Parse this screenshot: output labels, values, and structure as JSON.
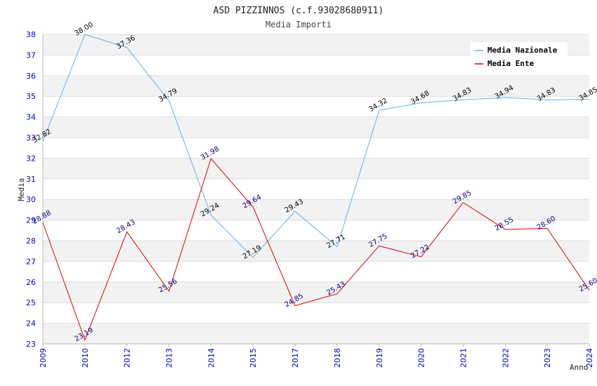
{
  "chart_data": {
    "type": "line",
    "title": "ASD PIZZINNOS (c.f.93028680911)",
    "subtitle": "Media Importi",
    "xlabel": "Anno",
    "ylabel": "Media",
    "categories": [
      "2009",
      "2010",
      "2012",
      "2013",
      "2014",
      "2015",
      "2017",
      "2018",
      "2019",
      "2020",
      "2021",
      "2022",
      "2023",
      "2024"
    ],
    "ylim": [
      23,
      38
    ],
    "yticks": [
      23,
      24,
      25,
      26,
      27,
      28,
      29,
      30,
      31,
      32,
      33,
      34,
      35,
      36,
      37,
      38
    ],
    "legend_position": "top-right",
    "series": [
      {
        "name": "Media Nazionale",
        "color": "#6aaee8",
        "label_color": "#000000",
        "values": [
          32.82,
          38.0,
          37.36,
          34.79,
          29.24,
          27.19,
          29.43,
          27.71,
          34.32,
          34.68,
          34.83,
          34.94,
          34.83,
          34.85
        ],
        "labels": [
          "32.82",
          "38.00",
          "37.36",
          "34.79",
          "29.24",
          "27.19",
          "29.43",
          "27.71",
          "34.32",
          "34.68",
          "34.83",
          "34.94",
          "34.83",
          "34.85"
        ]
      },
      {
        "name": "Media Ente",
        "color": "#e00000",
        "label_color": "#000080",
        "values": [
          28.88,
          23.19,
          28.43,
          25.56,
          31.98,
          29.64,
          24.85,
          25.43,
          27.75,
          27.22,
          29.85,
          28.55,
          28.6,
          25.6
        ],
        "labels": [
          "28.88",
          "23.19",
          "28.43",
          "25.56",
          "31.98",
          "29.64",
          "24.85",
          "25.43",
          "27.75",
          "27.22",
          "29.85",
          "28.55",
          "28.60",
          "25.60"
        ]
      }
    ]
  }
}
